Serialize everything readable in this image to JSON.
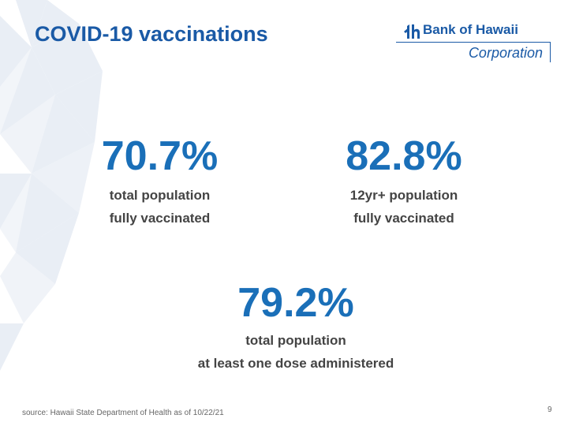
{
  "slide": {
    "title": "COVID-19 vaccinations",
    "source": "source: Hawaii State Department of Health as of 10/22/21",
    "page_number": "9"
  },
  "logo": {
    "icon": "bank-of-hawaii-mark-icon",
    "name": "Bank of Hawaii",
    "subtitle": "Corporation"
  },
  "stats": [
    {
      "value": "70.7%",
      "line1": "total population",
      "line2": "fully vaccinated"
    },
    {
      "value": "82.8%",
      "line1": "12yr+ population",
      "line2": "fully vaccinated"
    },
    {
      "value": "79.2%",
      "line1": "total population",
      "line2": "at least one dose administered"
    }
  ],
  "colors": {
    "title": "#1a5aa6",
    "value": "#1a6fb8",
    "text": "#444444",
    "pattern": "#e9eef5"
  }
}
